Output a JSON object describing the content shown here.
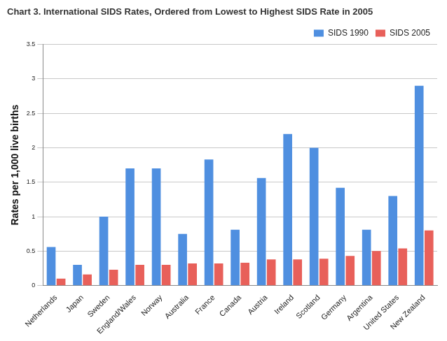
{
  "chart_data": {
    "type": "bar",
    "title": "Chart 3. International SIDS Rates, Ordered from Lowest to Highest SIDS Rate in 2005",
    "y_label": "Rates per 1,000 live births",
    "categories": [
      "Netherlands",
      "Japan",
      "Sweden",
      "England/Wales",
      "Norway",
      "Australia",
      "France",
      "Canada",
      "Austria",
      "Ireland",
      "Scotland",
      "Germany",
      "Argentina",
      "United States",
      "New Zealand"
    ],
    "series": [
      {
        "name": "SIDS 1990",
        "color": "#4f8fe0",
        "values": [
          0.56,
          0.3,
          1.0,
          1.7,
          1.7,
          0.75,
          1.83,
          0.81,
          1.56,
          2.2,
          2.0,
          1.42,
          0.81,
          1.3,
          2.9
        ]
      },
      {
        "name": "SIDS 2005",
        "color": "#e8605a",
        "values": [
          0.1,
          0.16,
          0.23,
          0.3,
          0.3,
          0.32,
          0.32,
          0.33,
          0.38,
          0.38,
          0.39,
          0.43,
          0.5,
          0.54,
          0.8
        ]
      }
    ],
    "ylim": [
      0,
      3.5
    ],
    "yticks": [
      0,
      0.5,
      1,
      1.5,
      2,
      2.5,
      3,
      3.5
    ],
    "grid": true,
    "legend": "upper right"
  }
}
